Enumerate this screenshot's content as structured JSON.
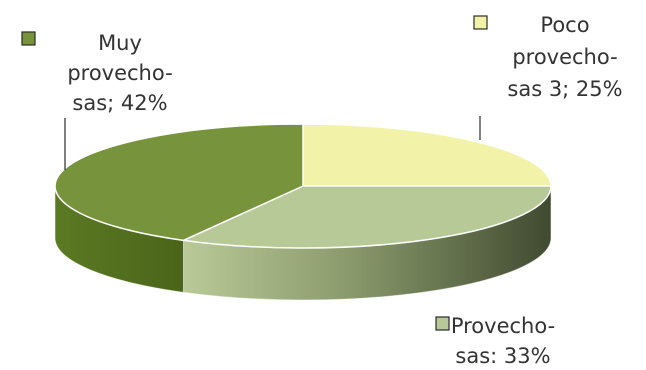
{
  "chart_data": {
    "type": "pie",
    "title": "",
    "slices": [
      {
        "name": "Muy provecho-sas",
        "value": 42,
        "label_lines": [
          "Muy",
          "provecho-",
          "sas; 42%"
        ],
        "color": "#77933c"
      },
      {
        "name": "Poco provecho-sas 3",
        "value": 25,
        "label_lines": [
          "Poco",
          "provecho-",
          "sas 3; 25%"
        ],
        "color": "#f2f2a8"
      },
      {
        "name": "Provecho-sas",
        "value": 33,
        "label_lines": [
          "Provecho-",
          "sas: 33%"
        ],
        "color": "#b7c996"
      }
    ]
  }
}
